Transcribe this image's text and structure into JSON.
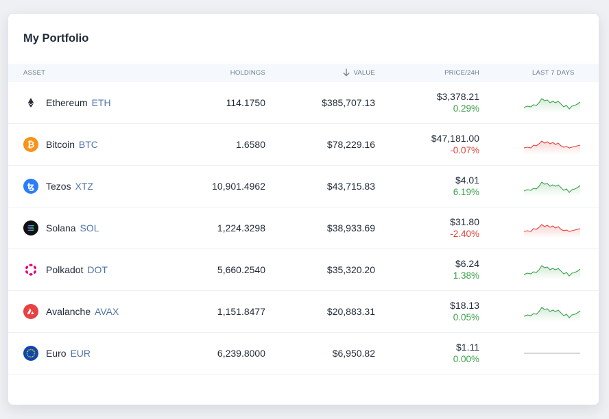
{
  "title": "My Portfolio",
  "columns": {
    "asset": "ASSET",
    "holdings": "HOLDINGS",
    "value": "VALUE",
    "price": "PRICE/24H",
    "last7": "LAST 7 DAYS"
  },
  "colors": {
    "up": "#3aa14a",
    "down": "#e0413c",
    "symbol": "#4f74a8",
    "header_bg": "#f5f8fd"
  },
  "rows": [
    {
      "name": "Ethereum",
      "symbol": "ETH",
      "icon": "ethereum-icon",
      "holdings": "114.1750",
      "value": "$385,707.13",
      "price": "$3,378.21",
      "change": "0.29%",
      "trend": "up"
    },
    {
      "name": "Bitcoin",
      "symbol": "BTC",
      "icon": "bitcoin-icon",
      "holdings": "1.6580",
      "value": "$78,229.16",
      "price": "$47,181.00",
      "change": "-0.07%",
      "trend": "down"
    },
    {
      "name": "Tezos",
      "symbol": "XTZ",
      "icon": "tezos-icon",
      "holdings": "10,901.4962",
      "value": "$43,715.83",
      "price": "$4.01",
      "change": "6.19%",
      "trend": "up"
    },
    {
      "name": "Solana",
      "symbol": "SOL",
      "icon": "solana-icon",
      "holdings": "1,224.3298",
      "value": "$38,933.69",
      "price": "$31.80",
      "change": "-2.40%",
      "trend": "down"
    },
    {
      "name": "Polkadot",
      "symbol": "DOT",
      "icon": "polkadot-icon",
      "holdings": "5,660.2540",
      "value": "$35,320.20",
      "price": "$6.24",
      "change": "1.38%",
      "trend": "up"
    },
    {
      "name": "Avalanche",
      "symbol": "AVAX",
      "icon": "avalanche-icon",
      "holdings": "1,151.8477",
      "value": "$20,883.31",
      "price": "$18.13",
      "change": "0.05%",
      "trend": "up"
    },
    {
      "name": "Euro",
      "symbol": "EUR",
      "icon": "euro-icon",
      "holdings": "6,239.8000",
      "value": "$6,950.82",
      "price": "$1.11",
      "change": "0.00%",
      "trend": "flat"
    }
  ]
}
